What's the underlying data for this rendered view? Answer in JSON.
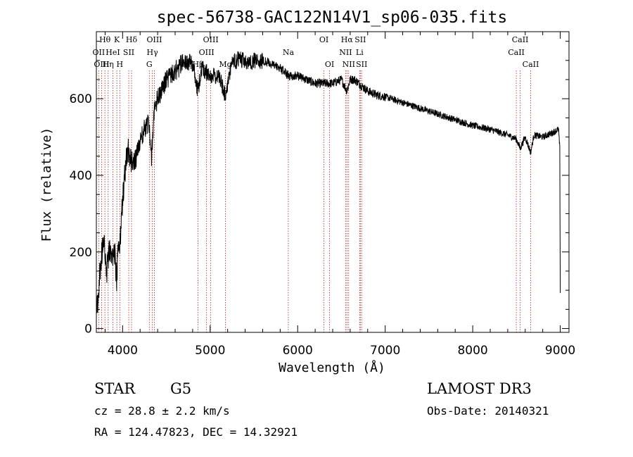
{
  "chart_data": {
    "type": "line",
    "title": "spec-56738-GAC122N14V1_sp06-035.fits",
    "xlabel": "Wavelength (Å)",
    "ylabel": "Flux (relative)",
    "xlim": [
      3700,
      9100
    ],
    "ylim": [
      -10,
      775
    ],
    "xticks": [
      4000,
      5000,
      6000,
      7000,
      8000,
      9000
    ],
    "yticks": [
      0,
      200,
      400,
      600
    ],
    "xminor": 200,
    "yminor": 50,
    "colors": {
      "spectrum": "#000000",
      "line_marker": "#b22222"
    },
    "spectrum_anchors": {
      "x": [
        3700,
        3715,
        3735,
        3760,
        3790,
        3820,
        3850,
        3880,
        3910,
        3933,
        3950,
        3968,
        3990,
        4020,
        4060,
        4100,
        4150,
        4200,
        4250,
        4300,
        4330,
        4360,
        4400,
        4450,
        4500,
        4600,
        4700,
        4800,
        4861,
        4900,
        5000,
        5100,
        5172,
        5250,
        5300,
        5340,
        5400,
        5500,
        5600,
        5700,
        5800,
        5893,
        5950,
        6000,
        6100,
        6200,
        6300,
        6400,
        6500,
        6563,
        6600,
        6650,
        6700,
        6800,
        6900,
        7000,
        7200,
        7400,
        7600,
        7800,
        8000,
        8200,
        8400,
        8498,
        8542,
        8600,
        8662,
        8700,
        8800,
        8900,
        8980,
        8995,
        9000
      ],
      "y": [
        80,
        60,
        130,
        200,
        220,
        150,
        210,
        180,
        200,
        120,
        230,
        210,
        300,
        400,
        470,
        440,
        440,
        490,
        520,
        540,
        450,
        570,
        600,
        620,
        650,
        670,
        700,
        690,
        620,
        680,
        660,
        660,
        610,
        690,
        700,
        710,
        690,
        700,
        700,
        690,
        680,
        660,
        660,
        660,
        650,
        640,
        640,
        640,
        650,
        620,
        650,
        650,
        640,
        620,
        610,
        605,
        590,
        575,
        560,
        545,
        530,
        520,
        505,
        495,
        470,
        500,
        460,
        505,
        500,
        510,
        520,
        470,
        100
      ]
    },
    "lines": [
      {
        "label": "Hθ",
        "wave": 3798,
        "row": 0
      },
      {
        "label": "OII",
        "wave": 3727,
        "row": 1
      },
      {
        "label": "OIII",
        "wave": 3760,
        "row": 2
      },
      {
        "label": "K",
        "wave": 3934,
        "row": 0
      },
      {
        "label": "HeI",
        "wave": 3889,
        "row": 1
      },
      {
        "label": "Hη",
        "wave": 3835,
        "row": 2
      },
      {
        "label": "SII",
        "wave": 4070,
        "row": 1
      },
      {
        "label": "H",
        "wave": 3968,
        "row": 2
      },
      {
        "label": "Hδ",
        "wave": 4102,
        "row": 0
      },
      {
        "label": "OIII",
        "wave": 4363,
        "row": 0
      },
      {
        "label": "Hγ",
        "wave": 4340,
        "row": 1
      },
      {
        "label": "G",
        "wave": 4305,
        "row": 2
      },
      {
        "label": "OIII",
        "wave": 5007,
        "row": 0
      },
      {
        "label": "OIII",
        "wave": 4959,
        "row": 1
      },
      {
        "label": "Hβ",
        "wave": 4861,
        "row": 2
      },
      {
        "label": "Mg",
        "wave": 5175,
        "row": 2
      },
      {
        "label": "Na",
        "wave": 5893,
        "row": 1
      },
      {
        "label": "OI",
        "wave": 6300,
        "row": 0
      },
      {
        "label": "OI",
        "wave": 6364,
        "row": 2
      },
      {
        "label": "Hα",
        "wave": 6563,
        "row": 0
      },
      {
        "label": "NII",
        "wave": 6548,
        "row": 1
      },
      {
        "label": "NII",
        "wave": 6583,
        "row": 2
      },
      {
        "label": "SII",
        "wave": 6716,
        "row": 0
      },
      {
        "label": "Li",
        "wave": 6708,
        "row": 1
      },
      {
        "label": "SII",
        "wave": 6731,
        "row": 2
      },
      {
        "label": "CaII",
        "wave": 8542,
        "row": 0
      },
      {
        "label": "CaII",
        "wave": 8498,
        "row": 1
      },
      {
        "label": "CaII",
        "wave": 8662,
        "row": 2
      }
    ]
  },
  "info": {
    "object_class": "STAR",
    "subclass": "G5",
    "survey": "LAMOST DR3",
    "cz": "cz = 28.8 ± 2.2 km/s",
    "obs_date": "Obs-Date: 20140321",
    "coords": "RA = 124.47823, DEC =  14.32921"
  }
}
